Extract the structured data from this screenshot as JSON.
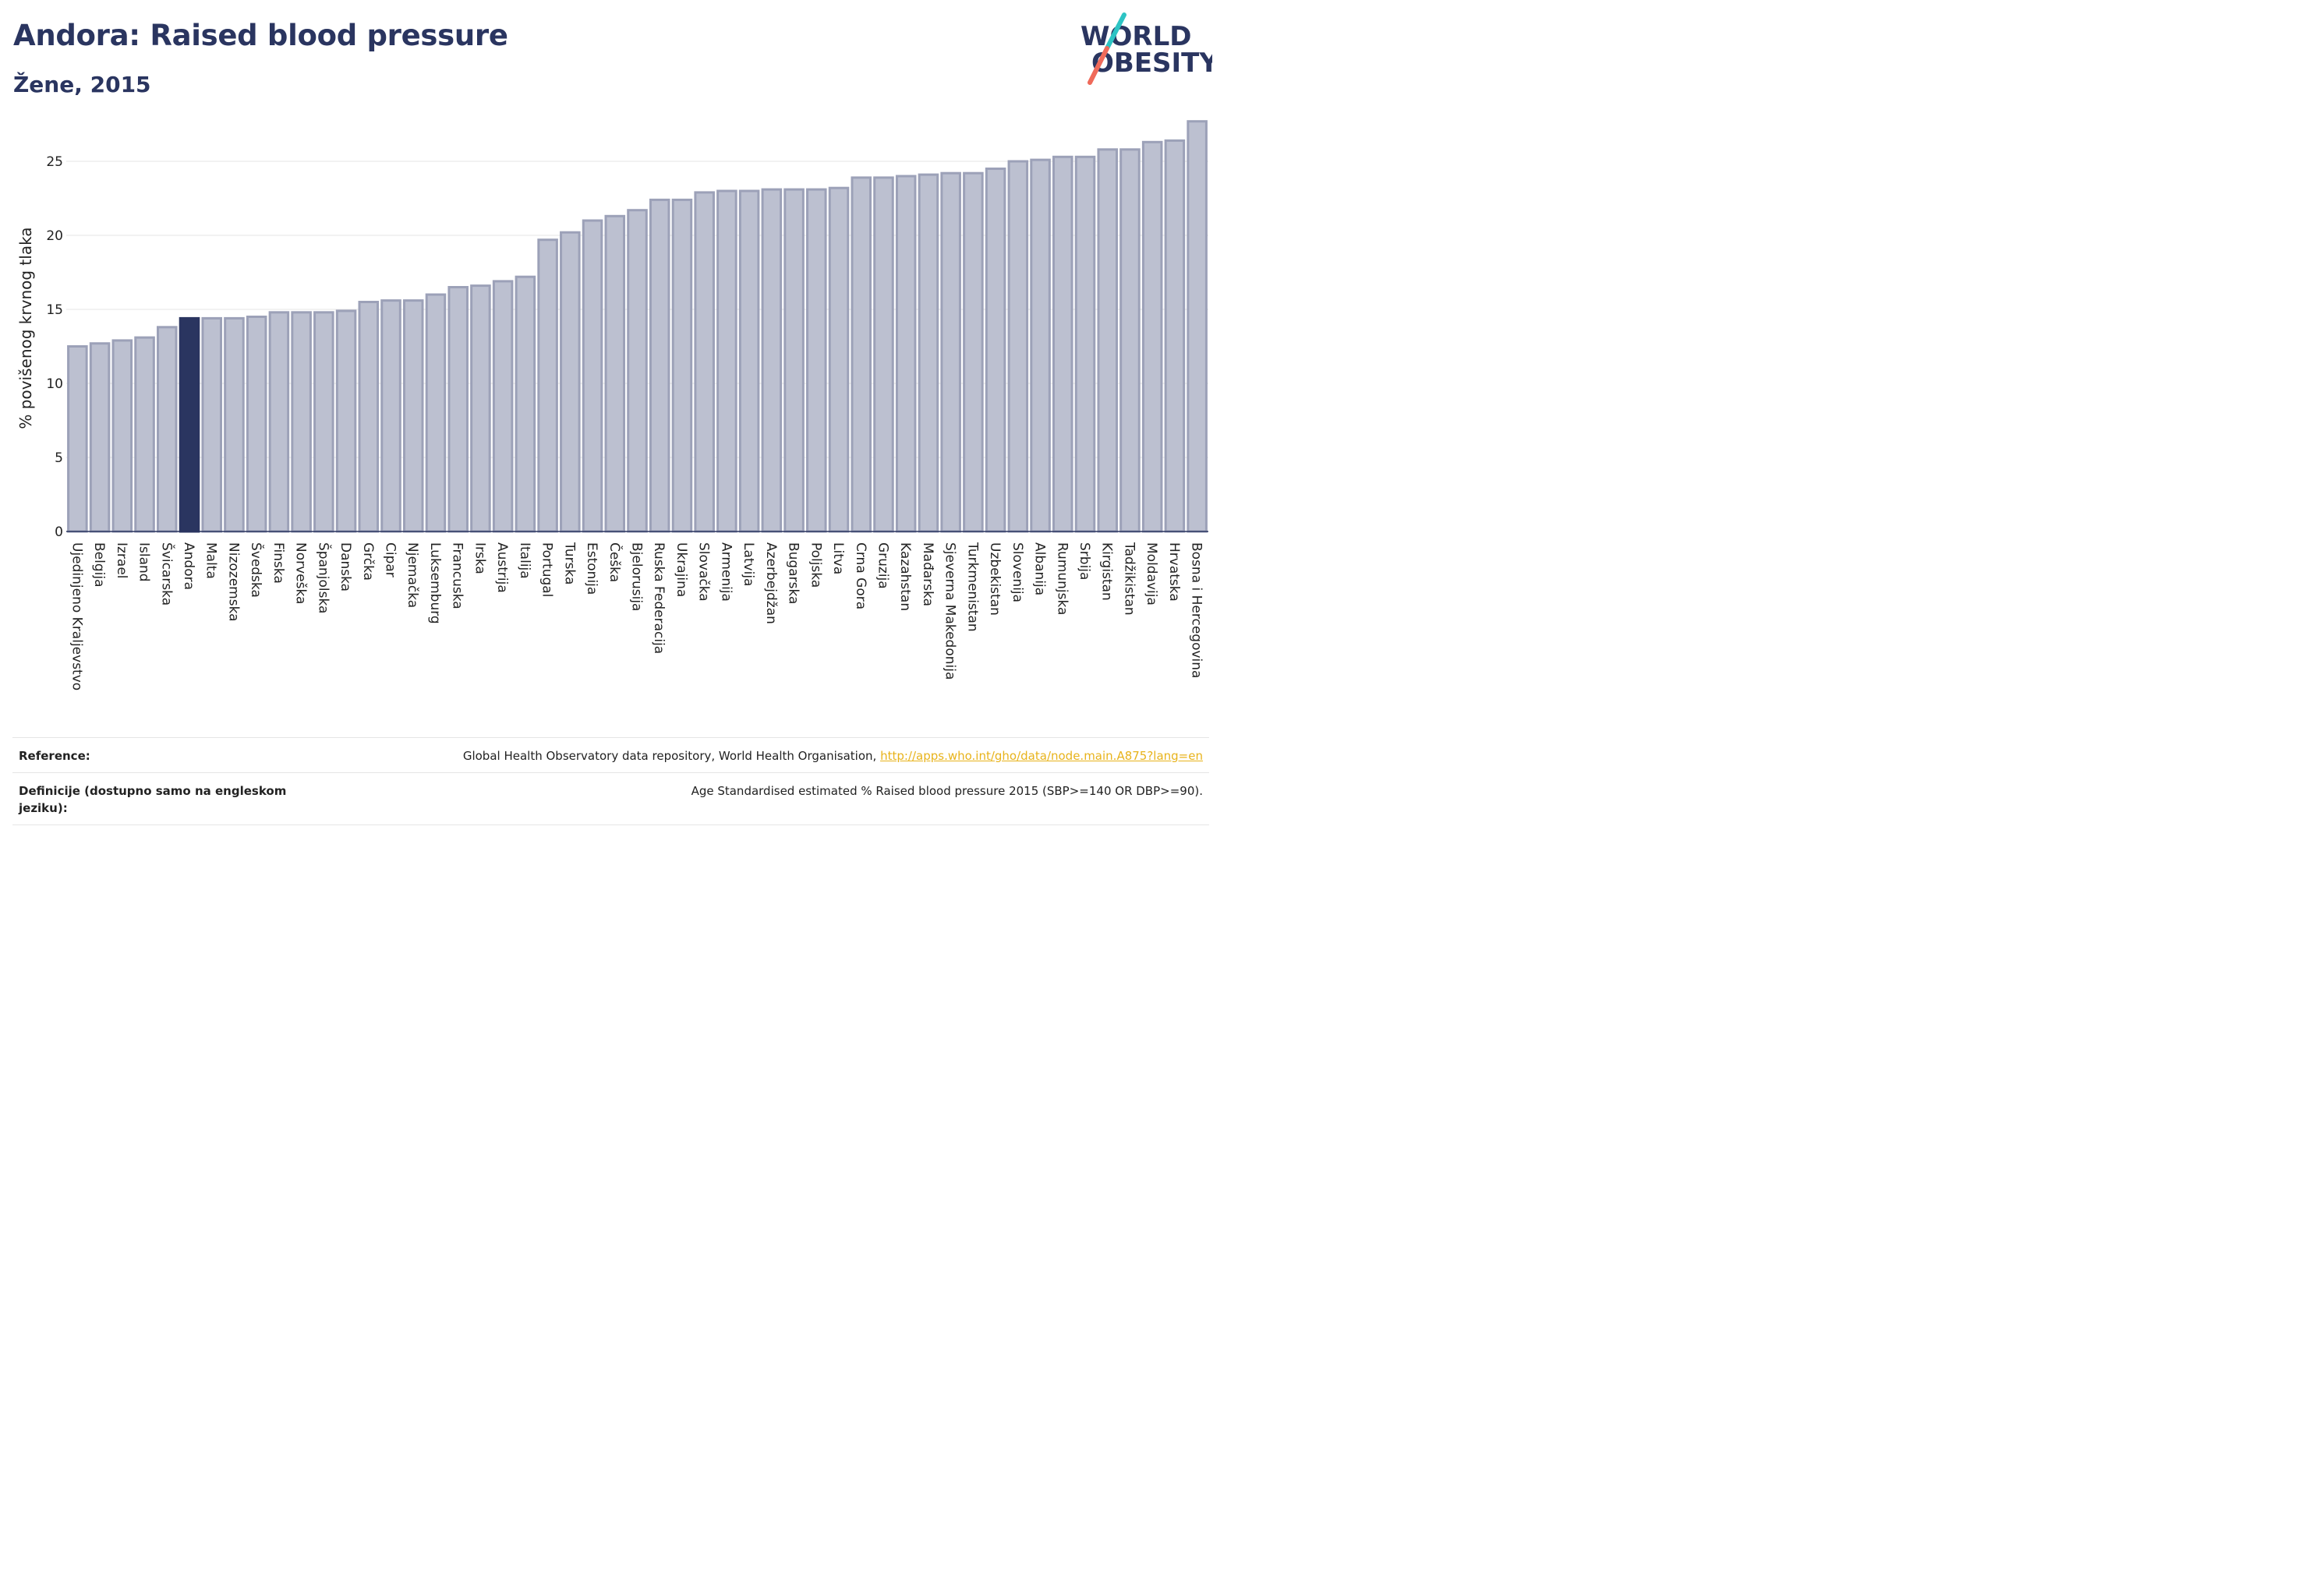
{
  "header": {
    "title": "Andora: Raised blood pressure",
    "subtitle": "Žene, 2015"
  },
  "logo": {
    "line1": "WORLD",
    "line2": "OBESITY",
    "colors": {
      "text": "#2a3560",
      "slash_teal": "#2ec4c4",
      "slash_coral": "#ef6a5a"
    }
  },
  "chart_data": {
    "type": "bar",
    "ylabel": "% povišenog krvnog tlaka",
    "xlabel": "",
    "ylim": [
      0,
      28
    ],
    "yticks": [
      0,
      5,
      10,
      15,
      20,
      25
    ],
    "grid": true,
    "highlight": "Andora",
    "colors": {
      "bar": "#bcc0d0",
      "bar_border": "#9ca1b8",
      "highlight": "#2a3560"
    },
    "categories": [
      "Ujedinjeno Kraljevstvo",
      "Belgija",
      "Izrael",
      "Island",
      "Švicarska",
      "Andora",
      "Malta",
      "Nizozemska",
      "Švedska",
      "Finska",
      "Norveška",
      "Španjolska",
      "Danska",
      "Grčka",
      "Cipar",
      "Njemačka",
      "Luksemburg",
      "Francuska",
      "Irska",
      "Austrija",
      "Italija",
      "Portugal",
      "Turska",
      "Estonija",
      "Češka",
      "Bjelorusija",
      "Ruska Federacija",
      "Ukrajina",
      "Slovačka",
      "Armenija",
      "Latvija",
      "Azerbejdžan",
      "Bugarska",
      "Poljska",
      "Litva",
      "Crna Gora",
      "Gruzija",
      "Kazahstan",
      "Mađarska",
      "Sjeverna Makedonija",
      "Turkmenistan",
      "Uzbekistan",
      "Slovenija",
      "Albanija",
      "Rumunjska",
      "Srbija",
      "Kirgistan",
      "Tadžikistan",
      "Moldavija",
      "Hrvatska",
      "Bosna i Hercegovina"
    ],
    "values": [
      12.5,
      12.7,
      12.9,
      13.1,
      13.8,
      14.4,
      14.4,
      14.4,
      14.5,
      14.8,
      14.8,
      14.8,
      14.9,
      15.5,
      15.6,
      15.6,
      16.0,
      16.5,
      16.6,
      16.9,
      17.2,
      19.7,
      20.2,
      21.0,
      21.3,
      21.7,
      22.4,
      22.4,
      22.9,
      23.0,
      23.0,
      23.1,
      23.1,
      23.1,
      23.2,
      23.9,
      23.9,
      24.0,
      24.1,
      24.2,
      24.2,
      24.5,
      25.0,
      25.1,
      25.3,
      25.3,
      25.8,
      25.8,
      26.3,
      26.4,
      27.7
    ]
  },
  "footer": {
    "reference_label": "Reference:",
    "reference_text": "Global Health Observatory data repository, World Health Organisation, ",
    "reference_link": "http://apps.who.int/gho/data/node.main.A875?lang=en",
    "definition_label": "Definicije (dostupno samo na engleskom jeziku):",
    "definition_text": "Age Standardised estimated % Raised blood pressure 2015 (SBP>=140 OR DBP>=90)."
  }
}
